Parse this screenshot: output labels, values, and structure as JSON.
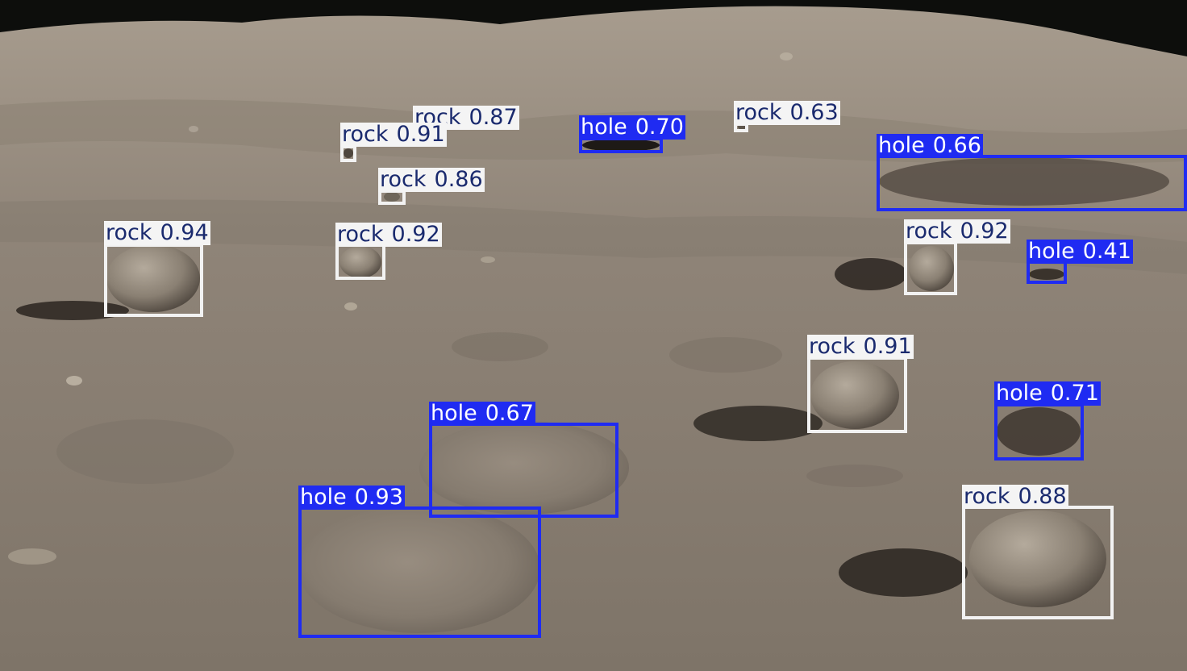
{
  "image": {
    "description_colors": {
      "sky": "#0d0e0c",
      "ground": "#8c8175",
      "ground_dark": "#6b6258",
      "ground_light": "#a59a8c"
    }
  },
  "detection_colors": {
    "rock": "#f2f2f2",
    "hole": "#1f2bf2",
    "rock_text": "#1a2a6e",
    "hole_text": "#ffffff"
  },
  "detections": [
    {
      "label": "rock",
      "score": "0.87"
    },
    {
      "label": "rock",
      "score": "0.91"
    },
    {
      "label": "hole",
      "score": "0.70"
    },
    {
      "label": "rock",
      "score": "0.63"
    },
    {
      "label": "hole",
      "score": "0.66"
    },
    {
      "label": "rock",
      "score": "0.86"
    },
    {
      "label": "rock",
      "score": "0.94"
    },
    {
      "label": "rock",
      "score": "0.92"
    },
    {
      "label": "rock",
      "score": "0.92"
    },
    {
      "label": "hole",
      "score": "0.41"
    },
    {
      "label": "rock",
      "score": "0.91"
    },
    {
      "label": "hole",
      "score": "0.71"
    },
    {
      "label": "hole",
      "score": "0.67"
    },
    {
      "label": "hole",
      "score": "0.93"
    },
    {
      "label": "rock",
      "score": "0.88"
    }
  ]
}
